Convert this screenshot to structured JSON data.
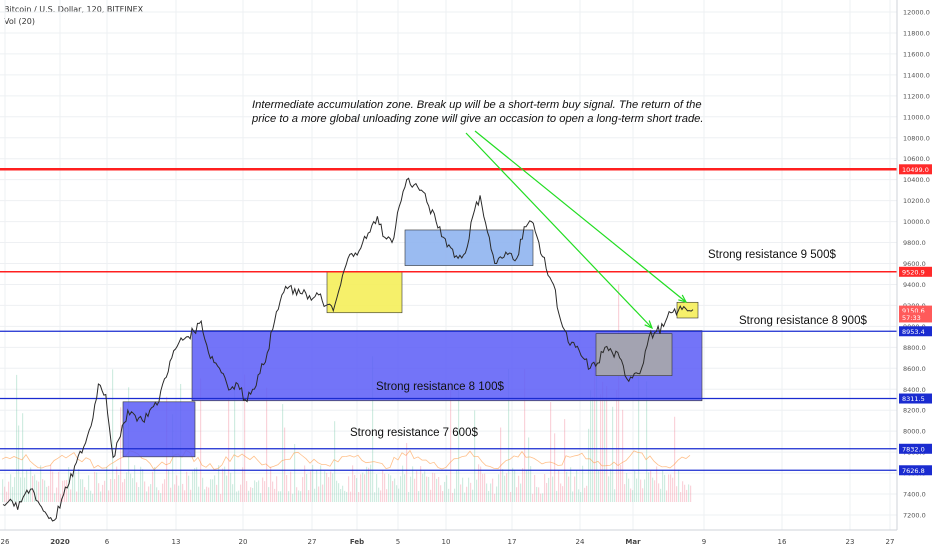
{
  "header": {
    "symbol_line": "Bitcoin / U.S. Dollar, 120, BITFINEX",
    "volume_label": "Vol (20)"
  },
  "chart_data": {
    "type": "line",
    "title": "",
    "xlabel": "",
    "ylabel": "",
    "ylim": [
      7100,
      12100
    ],
    "x_ticks": [
      "26",
      "2020",
      "6",
      "13",
      "20",
      "27",
      "Feb",
      "5",
      "10",
      "17",
      "24",
      "Mar",
      "9",
      "16",
      "23",
      "27"
    ],
    "y_ticks": [
      12000,
      11800,
      11600,
      11400,
      11200,
      11000,
      10800,
      10600,
      10400,
      10200,
      10000,
      9800,
      9600,
      9400,
      9200,
      9000,
      8800,
      8600,
      8400,
      8200,
      8000,
      7800,
      7600,
      7400,
      7200
    ],
    "series": [
      {
        "values": [
          7300,
          7350,
          7250,
          7400,
          7450,
          7300,
          7200,
          7150,
          7350,
          7500,
          7700,
          7850,
          8050,
          8450,
          8350,
          7750,
          7950,
          8200,
          8150,
          8100,
          8200,
          8250,
          8500,
          8700,
          8850,
          8900,
          8950,
          9050,
          8750,
          8650,
          8550,
          8400,
          8450,
          8300,
          8400,
          8550,
          8750,
          9050,
          9300,
          9380,
          9300,
          9350,
          9250,
          9300,
          9200,
          9150,
          9400,
          9650,
          9700,
          9800,
          9900,
          10050,
          9850,
          9800,
          10150,
          10400,
          10350,
          10300,
          10150,
          10000,
          9850,
          9750,
          9650,
          9700,
          10050,
          10250,
          9900,
          9600,
          9650,
          9700,
          9650,
          9950,
          10000,
          9800,
          9550,
          9400,
          9050,
          8850,
          8800,
          8700,
          8600,
          8650,
          8800,
          8750,
          8700,
          8500,
          8550,
          8600,
          8900,
          8950,
          9000,
          9130,
          9150,
          9170,
          9160
        ]
      }
    ],
    "price_tags": [
      {
        "label": "10499.0",
        "value": 10499,
        "color": "#ff2a2a"
      },
      {
        "label": "9520.9",
        "value": 9520.9,
        "color": "#ff2a2a"
      },
      {
        "label": "9150.6",
        "value": 9150.6,
        "color": "#ff5a5a"
      },
      {
        "label": "57:33",
        "value": 9085,
        "color": "#ff5a5a"
      },
      {
        "label": "8953.4",
        "value": 8953.4,
        "color": "#1a2bd0"
      },
      {
        "label": "8311.5",
        "value": 8311.5,
        "color": "#1a2bd0"
      },
      {
        "label": "7832.0",
        "value": 7832,
        "color": "#1a2bd0"
      },
      {
        "label": "7626.8",
        "value": 7626.8,
        "color": "#1a2bd0"
      }
    ],
    "annotations": {
      "idea_line1": "Intermediate accumulation zone. Break up will be a short-term buy signal. The return of the",
      "idea_line2": "price to a more global unloading zone will give an occasion to open a long-term short trade.",
      "res_9500": "Strong resistance 9 500$",
      "res_8900": "Strong resistance 8 900$",
      "res_8100": "Strong resistance 8 100$",
      "res_7600": "Strong resistance 7 600$"
    },
    "colors": {
      "red_line": "#ff1f1f",
      "blue_line": "#1a2bd0",
      "blue_zone": "#5a5cf7",
      "light_blue_zone": "#8fb4f0",
      "yellow_zone": "#f5ee5a",
      "grey_zone": "#a8a8a8",
      "arrow": "#22dd22",
      "price": "#2a2a2a"
    }
  }
}
